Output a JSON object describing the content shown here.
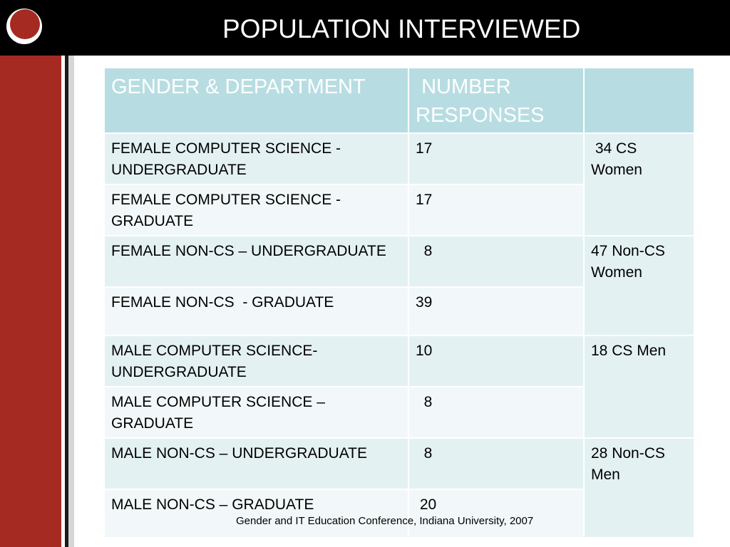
{
  "title": "POPULATION INTERVIEWED",
  "table": {
    "headers": [
      "GENDER & DEPARTMENT",
      " NUMBER RESPONSES",
      ""
    ],
    "rows": [
      {
        "department": "FEMALE COMPUTER SCIENCE - UNDERGRADUATE",
        "number": "17"
      },
      {
        "department": "FEMALE COMPUTER SCIENCE - GRADUATE",
        "number": "17"
      },
      {
        "department": "FEMALE NON-CS – UNDERGRADUATE",
        "number": "  8"
      },
      {
        "department": "FEMALE NON-CS  - GRADUATE",
        "number": "39"
      },
      {
        "department": "MALE COMPUTER SCIENCE- UNDERGRADUATE",
        "number": "10"
      },
      {
        "department": "MALE COMPUTER SCIENCE – GRADUATE",
        "number": "  8"
      },
      {
        "department": "MALE NON-CS – UNDERGRADUATE",
        "number": "  8"
      },
      {
        "department": "MALE NON-CS – GRADUATE",
        "number": " 20"
      }
    ],
    "groups": [
      " 34 CS Women",
      "47 Non-CS Women",
      "18 CS Men",
      "28 Non-CS Men"
    ]
  },
  "footer": "Gender and IT Education Conference, Indiana University, 2007",
  "colors": {
    "title_bar": "#000000",
    "accent_red": "#a52a22",
    "header_fill": "#b7dde2",
    "row_fill_a": "#e4f1f3",
    "row_fill_b": "#f2f8f9"
  }
}
